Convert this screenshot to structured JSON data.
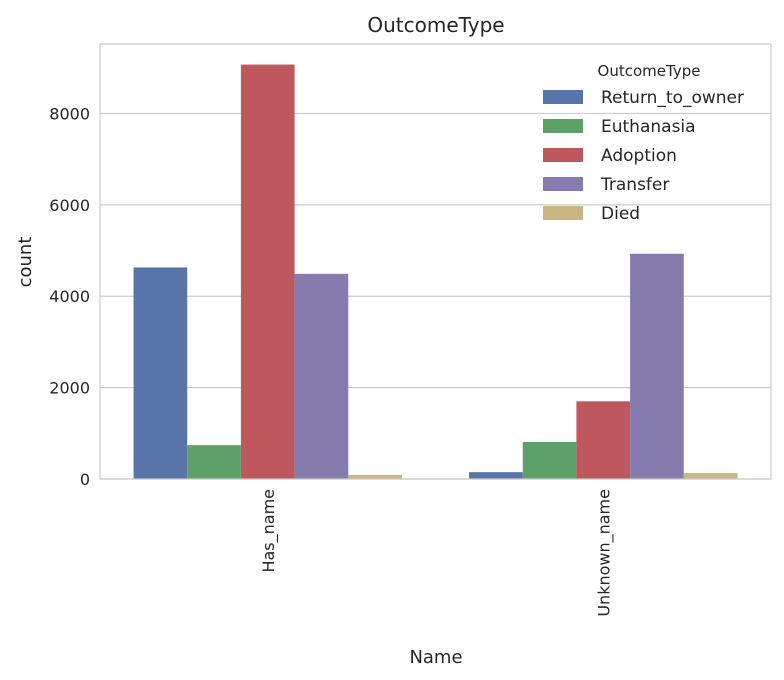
{
  "chart_data": {
    "type": "bar",
    "title": "OutcomeType",
    "xlabel": "Name",
    "ylabel": "count",
    "categories": [
      "Has_name",
      "Unknown_name"
    ],
    "series": [
      {
        "name": "Return_to_owner",
        "color": "#5874a8",
        "values": [
          4630,
          150
        ]
      },
      {
        "name": "Euthanasia",
        "color": "#5da169",
        "values": [
          740,
          810
        ]
      },
      {
        "name": "Adoption",
        "color": "#bf585e",
        "values": [
          9070,
          1700
        ]
      },
      {
        "name": "Transfer",
        "color": "#857bae",
        "values": [
          4490,
          4930
        ]
      },
      {
        "name": "Died",
        "color": "#c9b682",
        "values": [
          90,
          130
        ]
      }
    ],
    "ylim": [
      0,
      9520
    ],
    "yticks": [
      0,
      2000,
      4000,
      6000,
      8000
    ],
    "grid": true,
    "legend": {
      "title": "OutcomeType",
      "placement": "top-right"
    }
  }
}
